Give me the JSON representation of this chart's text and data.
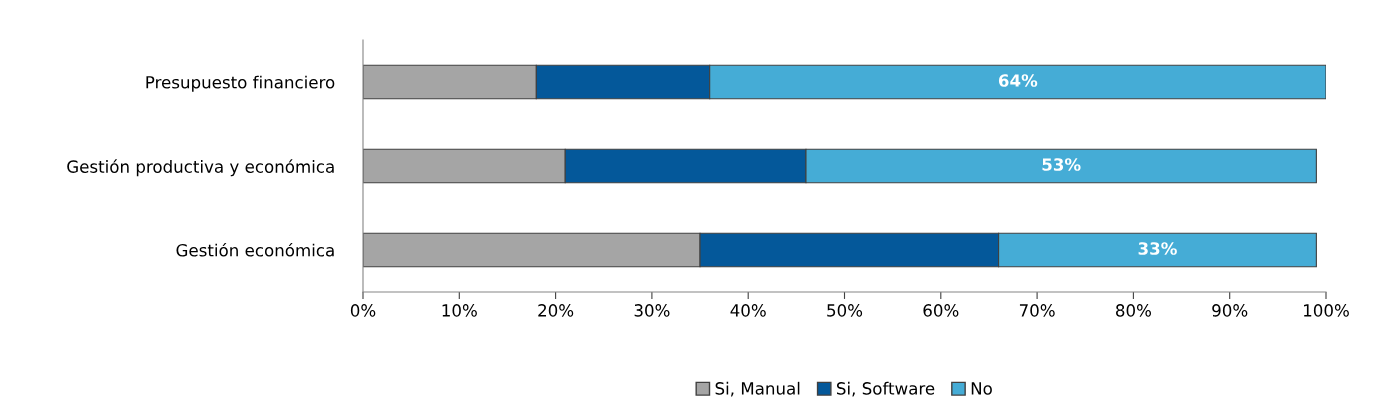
{
  "chart_data": {
    "type": "bar",
    "orientation": "horizontal",
    "stacked": true,
    "categories": [
      "Presupuesto financiero",
      "Gestión productiva y económica",
      "Gestión económica"
    ],
    "series": [
      {
        "name": "Si, Manual",
        "color": "#a5a5a5",
        "values": [
          18,
          21,
          35
        ]
      },
      {
        "name": "Si, Software",
        "color": "#04589a",
        "values": [
          18,
          25,
          31
        ]
      },
      {
        "name": "No",
        "color": "#45acd6",
        "values": [
          64,
          53,
          33
        ],
        "value_labels": [
          "64%",
          "53%",
          "33%"
        ]
      }
    ],
    "xlim": [
      0,
      100
    ],
    "xticks": [
      {
        "value": 0,
        "label": "0%"
      },
      {
        "value": 10,
        "label": "10%"
      },
      {
        "value": 20,
        "label": "20%"
      },
      {
        "value": 30,
        "label": "30%"
      },
      {
        "value": 40,
        "label": "40%"
      },
      {
        "value": 50,
        "label": "50%"
      },
      {
        "value": 60,
        "label": "60%"
      },
      {
        "value": 70,
        "label": "70%"
      },
      {
        "value": 80,
        "label": "80%"
      },
      {
        "value": 90,
        "label": "90%"
      },
      {
        "value": 100,
        "label": "100%"
      }
    ],
    "grid": false,
    "legend": "bottom"
  }
}
